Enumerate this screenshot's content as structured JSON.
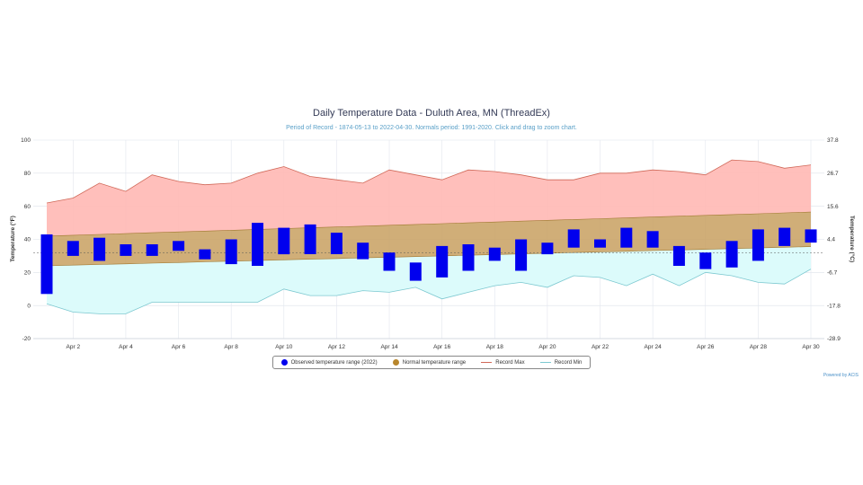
{
  "title": "Daily Temperature Data - Duluth Area, MN (ThreadEx)",
  "subtitle": "Period of Record - 1874-05-13 to 2022-04-30. Normals period: 1991-2020. Click and drag to zoom chart.",
  "credit": "Powered by ACIS",
  "legend": {
    "observed": "Observed temperature range (2022)",
    "normal": "Normal temperature range",
    "record_max": "Record Max",
    "record_min": "Record Min"
  },
  "colors": {
    "observed": "#0000ee",
    "normal_fill": "#c8a060",
    "record_max_fill": "#ffb8b4",
    "record_max_line": "#d06858",
    "record_min_fill": "#dcfbfb",
    "record_min_line": "#7cc8d0"
  },
  "chart_data": {
    "type": "bar",
    "y_left_label": "Temperature (°F)",
    "y_right_label": "Temperature (°C)",
    "ylim": [
      -20,
      100
    ],
    "y_ticks_left": [
      "100",
      "80",
      "60",
      "40",
      "20",
      "0",
      "-20"
    ],
    "y_ticks_right": [
      "37.8",
      "26.7",
      "15.6",
      "4.4",
      "-6.7",
      "-17.8",
      "-28.9"
    ],
    "x_ticks": [
      "Apr 2",
      "Apr 4",
      "Apr 6",
      "Apr 8",
      "Apr 10",
      "Apr 12",
      "Apr 14",
      "Apr 16",
      "Apr 18",
      "Apr 20",
      "Apr 22",
      "Apr 24",
      "Apr 26",
      "Apr 28",
      "Apr 30"
    ],
    "days": [
      1,
      2,
      3,
      4,
      5,
      6,
      7,
      8,
      9,
      10,
      11,
      12,
      13,
      14,
      15,
      16,
      17,
      18,
      19,
      20,
      21,
      22,
      23,
      24,
      25,
      26,
      27,
      28,
      29,
      30
    ],
    "observed_high": [
      43,
      39,
      41,
      37,
      37,
      39,
      34,
      40,
      50,
      47,
      49,
      44,
      38,
      32,
      26,
      36,
      37,
      35,
      40,
      38,
      46,
      40,
      47,
      45,
      36,
      32,
      39,
      46,
      47,
      46
    ],
    "observed_low": [
      7,
      30,
      27,
      30,
      30,
      33,
      28,
      25,
      24,
      31,
      31,
      31,
      28,
      21,
      15,
      17,
      21,
      27,
      21,
      31,
      35,
      35,
      35,
      35,
      24,
      22,
      23,
      27,
      36,
      38
    ],
    "normal_high": [
      42,
      42.5,
      43,
      43.5,
      44,
      44.5,
      45,
      45.5,
      46,
      46.5,
      47,
      47.5,
      48,
      48.5,
      49,
      49.5,
      50,
      50.5,
      51,
      51.5,
      52,
      52.5,
      53,
      53.5,
      54,
      54.5,
      55,
      55.5,
      56,
      56.5
    ],
    "normal_low": [
      24,
      24.4,
      24.8,
      25.2,
      25.6,
      26,
      26.4,
      26.8,
      27.2,
      27.6,
      28,
      28.4,
      28.8,
      29.2,
      29.6,
      30,
      30.4,
      30.8,
      31.2,
      31.6,
      32,
      32.4,
      32.8,
      33.2,
      33.6,
      34,
      34.4,
      34.8,
      35.2,
      35.6
    ],
    "record_max": [
      62,
      65,
      74,
      69,
      79,
      75,
      73,
      74,
      80,
      84,
      78,
      76,
      74,
      82,
      79,
      76,
      82,
      81,
      79,
      76,
      76,
      80,
      80,
      82,
      81,
      79,
      88,
      87,
      83,
      85
    ],
    "record_min": [
      1,
      -4,
      -5,
      -5,
      2,
      2,
      2,
      2,
      2,
      10,
      6,
      6,
      9,
      8,
      11,
      4,
      8,
      12,
      14,
      11,
      18,
      17,
      12,
      19,
      12,
      20,
      18,
      14,
      13,
      22
    ]
  }
}
